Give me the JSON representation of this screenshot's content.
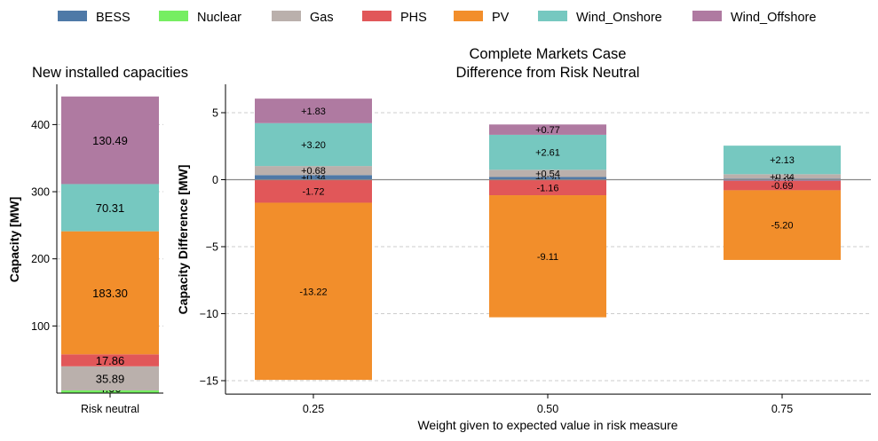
{
  "legend": {
    "items": [
      {
        "label": "BESS",
        "color": "#4e79a7"
      },
      {
        "label": "Nuclear",
        "color": "#76ee62"
      },
      {
        "label": "Gas",
        "color": "#bab0ac"
      },
      {
        "label": "PHS",
        "color": "#e15759"
      },
      {
        "label": "PV",
        "color": "#f28e2b"
      },
      {
        "label": "Wind_Onshore",
        "color": "#76c8c0"
      },
      {
        "label": "Wind_Offshore",
        "color": "#af7aa1"
      }
    ]
  },
  "chart_data": [
    {
      "type": "bar",
      "stacked": true,
      "title": "New installed capacities",
      "ylabel": "Capacity [MW]",
      "xlabel": "",
      "categories": [
        "Risk neutral"
      ],
      "ylim": [
        0,
        460
      ],
      "yticks": [
        100,
        200,
        300,
        400
      ],
      "grid": "y-dashed",
      "series": [
        {
          "name": "Nuclear",
          "values": [
            4.0
          ]
        },
        {
          "name": "Gas",
          "values": [
            35.89
          ]
        },
        {
          "name": "PHS",
          "values": [
            17.86
          ]
        },
        {
          "name": "PV",
          "values": [
            183.3
          ]
        },
        {
          "name": "Wind_Onshore",
          "values": [
            70.31
          ]
        },
        {
          "name": "Wind_Offshore",
          "values": [
            130.49
          ]
        }
      ],
      "labels": [
        "4.00",
        "35.89",
        "17.86",
        "183.30",
        "70.31",
        "130.49"
      ]
    },
    {
      "type": "bar",
      "stacked": true,
      "title": "Complete Markets Case",
      "subtitle": "Difference from Risk Neutral",
      "ylabel": "Capacity Difference [MW]",
      "xlabel": "Weight given to expected value in risk measure",
      "categories": [
        "0.25",
        "0.50",
        "0.75"
      ],
      "ylim": [
        -16,
        7
      ],
      "yticks": [
        -15,
        -10,
        -5,
        0,
        5
      ],
      "grid": "y-dashed",
      "zero_line": true,
      "series": [
        {
          "name": "BESS",
          "values": [
            0.34,
            0.2,
            0.07
          ],
          "labels": [
            "+0.34",
            "+0.20",
            "+0.07"
          ]
        },
        {
          "name": "Gas",
          "values": [
            0.68,
            0.54,
            0.34
          ],
          "labels": [
            "+0.68",
            "+0.54",
            "+0.34"
          ]
        },
        {
          "name": "Wind_Onshore",
          "values": [
            3.2,
            2.61,
            2.13
          ],
          "labels": [
            "+3.20",
            "+2.61",
            "+2.13"
          ]
        },
        {
          "name": "Wind_Offshore",
          "values": [
            1.83,
            0.77,
            -0.1
          ],
          "labels": [
            "+1.83",
            "+0.77",
            "-0.10"
          ]
        },
        {
          "name": "PHS",
          "values": [
            -1.72,
            -1.16,
            -0.69
          ],
          "labels": [
            "-1.72",
            "-1.16",
            "-0.69"
          ]
        },
        {
          "name": "PV",
          "values": [
            -13.22,
            -9.11,
            -5.2
          ],
          "labels": [
            "-13.22",
            "-9.11",
            "-5.20"
          ]
        }
      ]
    }
  ]
}
